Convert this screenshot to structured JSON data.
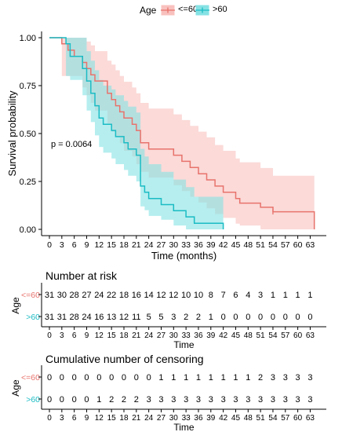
{
  "legend": {
    "title": "Age",
    "items": [
      {
        "label": "<=60",
        "color": "#e8736c",
        "fill": "#f8c1be"
      },
      {
        "label": ">60",
        "color": "#1bbcc4",
        "fill": "#86e2e4"
      }
    ]
  },
  "chart_data": [
    {
      "type": "line",
      "subtype": "kaplan-meier",
      "xlabel": "Time (months)",
      "ylabel": "Survival probability",
      "xlim": [
        0,
        65
      ],
      "ylim": [
        0,
        1
      ],
      "xticks": [
        0,
        3,
        6,
        9,
        12,
        15,
        18,
        21,
        24,
        27,
        30,
        33,
        36,
        39,
        42,
        45,
        48,
        51,
        54,
        57,
        60,
        63
      ],
      "yticks": [
        0.0,
        0.25,
        0.5,
        0.75,
        1.0
      ],
      "ytick_labels": [
        "0.00",
        "0.25",
        "0.50",
        "0.75",
        "1.00"
      ],
      "grid": false,
      "annotation": "p = 0.0064",
      "series": [
        {
          "name": "<=60",
          "color": "#e8736c",
          "fill": "#f8c1be",
          "steps": [
            [
              0,
              1.0
            ],
            [
              3,
              0.968
            ],
            [
              4.5,
              0.935
            ],
            [
              6,
              0.903
            ],
            [
              8,
              0.871
            ],
            [
              9,
              0.839
            ],
            [
              10,
              0.806
            ],
            [
              11,
              0.774
            ],
            [
              14,
              0.71
            ],
            [
              15,
              0.677
            ],
            [
              16,
              0.645
            ],
            [
              17,
              0.613
            ],
            [
              18,
              0.581
            ],
            [
              20,
              0.548
            ],
            [
              21,
              0.516
            ],
            [
              22,
              0.452
            ],
            [
              24,
              0.419
            ],
            [
              30,
              0.387
            ],
            [
              32,
              0.355
            ],
            [
              34,
              0.323
            ],
            [
              36,
              0.29
            ],
            [
              38,
              0.258
            ],
            [
              40,
              0.226
            ],
            [
              42,
              0.194
            ],
            [
              45,
              0.161
            ],
            [
              46,
              0.137
            ],
            [
              51,
              0.115
            ],
            [
              54,
              0.092
            ],
            [
              64,
              0.0
            ]
          ],
          "end_x": 64,
          "censor": [
            54
          ],
          "ci_upper": [
            [
              0,
              1.0
            ],
            [
              3,
              1.0
            ],
            [
              4.5,
              1.0
            ],
            [
              8,
              1.0
            ],
            [
              9,
              0.98
            ],
            [
              10,
              0.96
            ],
            [
              11,
              0.93
            ],
            [
              14,
              0.88
            ],
            [
              15,
              0.86
            ],
            [
              16,
              0.83
            ],
            [
              17,
              0.8
            ],
            [
              18,
              0.77
            ],
            [
              20,
              0.74
            ],
            [
              21,
              0.71
            ],
            [
              22,
              0.66
            ],
            [
              24,
              0.63
            ],
            [
              30,
              0.6
            ],
            [
              32,
              0.57
            ],
            [
              34,
              0.54
            ],
            [
              36,
              0.51
            ],
            [
              38,
              0.48
            ],
            [
              40,
              0.44
            ],
            [
              42,
              0.41
            ],
            [
              45,
              0.37
            ],
            [
              46,
              0.35
            ],
            [
              51,
              0.32
            ],
            [
              54,
              0.28
            ],
            [
              64,
              0.28
            ]
          ],
          "ci_lower": [
            [
              0,
              1.0
            ],
            [
              3,
              0.8
            ],
            [
              6,
              0.8
            ],
            [
              8,
              0.74
            ],
            [
              9,
              0.7
            ],
            [
              10,
              0.66
            ],
            [
              11,
              0.62
            ],
            [
              14,
              0.55
            ],
            [
              15,
              0.51
            ],
            [
              16,
              0.48
            ],
            [
              17,
              0.45
            ],
            [
              18,
              0.41
            ],
            [
              20,
              0.38
            ],
            [
              21,
              0.34
            ],
            [
              22,
              0.3
            ],
            [
              24,
              0.27
            ],
            [
              30,
              0.23
            ],
            [
              32,
              0.2
            ],
            [
              34,
              0.17
            ],
            [
              36,
              0.14
            ],
            [
              38,
              0.11
            ],
            [
              40,
              0.08
            ],
            [
              42,
              0.06
            ],
            [
              45,
              0.03
            ],
            [
              46,
              0.02
            ],
            [
              51,
              0.0
            ],
            [
              64,
              0.0
            ]
          ]
        },
        {
          "name": ">60",
          "color": "#1bbcc4",
          "fill": "#86e2e4",
          "steps": [
            [
              0,
              1.0
            ],
            [
              4,
              0.968
            ],
            [
              5,
              0.903
            ],
            [
              8,
              0.839
            ],
            [
              9,
              0.774
            ],
            [
              10,
              0.71
            ],
            [
              11,
              0.645
            ],
            [
              12,
              0.581
            ],
            [
              13,
              0.548
            ],
            [
              15,
              0.516
            ],
            [
              16,
              0.484
            ],
            [
              18,
              0.452
            ],
            [
              19,
              0.419
            ],
            [
              21,
              0.387
            ],
            [
              22,
              0.226
            ],
            [
              23,
              0.194
            ],
            [
              24,
              0.161
            ],
            [
              27,
              0.129
            ],
            [
              30,
              0.097
            ],
            [
              33,
              0.065
            ],
            [
              35,
              0.032
            ],
            [
              42,
              0.0
            ]
          ],
          "end_x": 42,
          "censor": [],
          "ci_upper": [
            [
              0,
              1.0
            ],
            [
              4,
              1.0
            ],
            [
              8,
              1.0
            ],
            [
              9,
              0.93
            ],
            [
              10,
              0.88
            ],
            [
              11,
              0.83
            ],
            [
              12,
              0.78
            ],
            [
              13,
              0.75
            ],
            [
              15,
              0.73
            ],
            [
              16,
              0.7
            ],
            [
              18,
              0.67
            ],
            [
              19,
              0.64
            ],
            [
              21,
              0.61
            ],
            [
              22,
              0.42
            ],
            [
              23,
              0.38
            ],
            [
              24,
              0.34
            ],
            [
              27,
              0.3
            ],
            [
              30,
              0.26
            ],
            [
              33,
              0.22
            ],
            [
              35,
              0.17
            ],
            [
              42,
              0.17
            ]
          ],
          "ci_lower": [
            [
              0,
              1.0
            ],
            [
              4,
              0.8
            ],
            [
              5,
              0.78
            ],
            [
              8,
              0.7
            ],
            [
              9,
              0.62
            ],
            [
              10,
              0.56
            ],
            [
              11,
              0.49
            ],
            [
              12,
              0.43
            ],
            [
              13,
              0.4
            ],
            [
              15,
              0.37
            ],
            [
              16,
              0.34
            ],
            [
              18,
              0.31
            ],
            [
              19,
              0.28
            ],
            [
              21,
              0.25
            ],
            [
              22,
              0.12
            ],
            [
              23,
              0.1
            ],
            [
              24,
              0.07
            ],
            [
              27,
              0.05
            ],
            [
              30,
              0.02
            ],
            [
              33,
              0.0
            ],
            [
              42,
              0.0
            ]
          ]
        }
      ]
    },
    {
      "type": "table",
      "title": "Number at risk",
      "ylabel": "Age",
      "xlabel": "Time",
      "columns": [
        0,
        3,
        6,
        9,
        12,
        15,
        18,
        21,
        24,
        27,
        30,
        33,
        36,
        39,
        42,
        45,
        48,
        51,
        54,
        57,
        60,
        63
      ],
      "rows": [
        {
          "label": "<=60",
          "color": "#e8736c",
          "values": [
            31,
            30,
            28,
            27,
            24,
            22,
            18,
            16,
            14,
            12,
            12,
            10,
            10,
            8,
            7,
            6,
            4,
            3,
            1,
            1,
            1,
            1
          ]
        },
        {
          "label": ">60",
          "color": "#1bbcc4",
          "values": [
            31,
            31,
            28,
            24,
            16,
            13,
            12,
            11,
            5,
            5,
            3,
            2,
            2,
            1,
            0,
            0,
            0,
            0,
            0,
            0,
            0,
            0
          ]
        }
      ]
    },
    {
      "type": "table",
      "title": "Cumulative number of censoring",
      "ylabel": "Age",
      "xlabel": "Time",
      "columns": [
        0,
        3,
        6,
        9,
        12,
        15,
        18,
        21,
        24,
        27,
        30,
        33,
        36,
        39,
        42,
        45,
        48,
        51,
        54,
        57,
        60,
        63
      ],
      "rows": [
        {
          "label": "<=60",
          "color": "#e8736c",
          "values": [
            0,
            0,
            0,
            0,
            0,
            0,
            0,
            0,
            0,
            1,
            1,
            1,
            1,
            1,
            1,
            1,
            1,
            2,
            3,
            3,
            3,
            3
          ]
        },
        {
          "label": ">60",
          "color": "#1bbcc4",
          "values": [
            0,
            0,
            0,
            0,
            1,
            2,
            2,
            2,
            3,
            3,
            3,
            3,
            3,
            3,
            3,
            3,
            3,
            3,
            3,
            3,
            3,
            3
          ]
        }
      ]
    }
  ]
}
